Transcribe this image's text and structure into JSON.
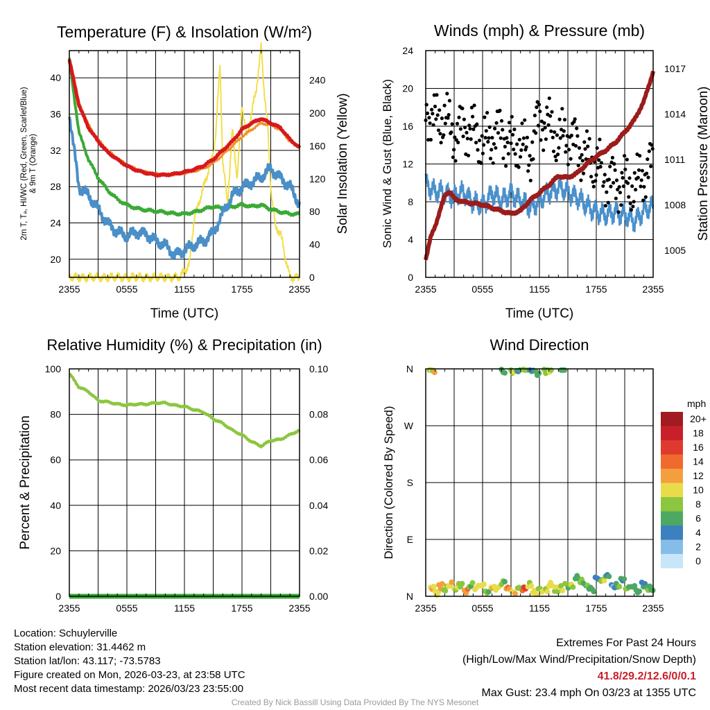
{
  "chart_data": [
    {
      "type": "line",
      "title": "Temperature (F) & Insolation (W/m²)",
      "xlabel": "Time (UTC)",
      "ylabel_lines": [
        "2m T, Tₔ, HI/WC (Red, Green, Scarlet/Blue)",
        "& 9m T (Orange)"
      ],
      "ylabel_right": "Solar Insolation (Yellow)",
      "xticks": [
        "2355",
        "0555",
        "1155",
        "1755",
        "2355"
      ],
      "ylim": [
        18,
        43
      ],
      "yticks": [
        20,
        24,
        28,
        32,
        36,
        40
      ],
      "ylim_right": [
        0,
        276
      ],
      "yticks_right": [
        0,
        40,
        80,
        120,
        160,
        200,
        240
      ],
      "series": [
        {
          "name": "2m Temperature",
          "color": "#d7191c",
          "x": [
            0,
            1,
            2,
            3,
            4,
            5,
            6,
            7,
            8,
            9,
            10,
            11,
            12,
            13,
            14,
            15,
            16,
            17,
            18,
            19,
            20,
            21,
            22,
            23,
            24
          ],
          "values": [
            42,
            37,
            34.5,
            33,
            31.8,
            31,
            30.3,
            29.8,
            29.5,
            29.3,
            29.3,
            29.4,
            29.6,
            29.9,
            30.3,
            31,
            32,
            33,
            34.3,
            35,
            35.5,
            35,
            34.5,
            33.2,
            32.3
          ]
        },
        {
          "name": "9m Temperature",
          "color": "#f28e2b",
          "x": [
            0,
            1,
            2,
            3,
            4,
            5,
            6,
            7,
            8,
            9,
            10,
            11,
            12,
            13,
            14,
            15,
            16,
            17,
            18,
            19,
            20,
            21,
            22,
            23,
            24
          ],
          "values": [
            42,
            37.3,
            34.8,
            33.2,
            32,
            31.1,
            30.4,
            29.9,
            29.6,
            29.4,
            29.3,
            29.4,
            29.5,
            29.7,
            30,
            30.6,
            31.5,
            32.5,
            33.5,
            34.3,
            35,
            34.8,
            34.3,
            33,
            32.3
          ]
        },
        {
          "name": "Dew Point",
          "color": "#3aaa35",
          "x": [
            0,
            1,
            2,
            3,
            4,
            5,
            6,
            7,
            8,
            9,
            10,
            11,
            12,
            13,
            14,
            15,
            16,
            17,
            18,
            19,
            20,
            21,
            22,
            23,
            24
          ],
          "values": [
            42,
            34,
            31,
            29,
            27.6,
            26.6,
            26,
            25.6,
            25.4,
            25.3,
            25.2,
            25,
            25,
            25.2,
            25.5,
            25.8,
            25.6,
            25.8,
            26,
            25.8,
            26,
            25.5,
            25.2,
            25,
            25
          ]
        },
        {
          "name": "Heat Index / Wind Chill",
          "color": "#4a8fc8",
          "x": [
            0,
            1,
            2,
            3,
            4,
            5,
            6,
            7,
            8,
            9,
            10,
            11,
            12,
            13,
            14,
            15,
            16,
            17,
            18,
            19,
            20,
            21,
            22,
            23,
            24
          ],
          "values": [
            36,
            28,
            27,
            25.5,
            24,
            23,
            22.5,
            23,
            22.8,
            22,
            21.5,
            20.5,
            21,
            21.5,
            22,
            23,
            25,
            27,
            28,
            28.5,
            29,
            30,
            29,
            28,
            26
          ]
        },
        {
          "name": "Solar Insolation",
          "color": "#f3df4a",
          "axis": "right",
          "x": [
            0,
            2,
            4,
            6,
            8,
            10,
            11.5,
            12.5,
            13,
            14,
            15,
            15.3,
            15.7,
            16,
            16.5,
            17,
            17.5,
            18,
            18.5,
            19,
            19.5,
            20,
            20.3,
            20.7,
            21,
            21.5,
            22,
            22.5,
            23,
            24
          ],
          "values": [
            0,
            0,
            0,
            0,
            0,
            0,
            0,
            15,
            70,
            110,
            150,
            180,
            260,
            140,
            90,
            180,
            120,
            210,
            170,
            200,
            230,
            280,
            230,
            180,
            110,
            60,
            55,
            25,
            0,
            0
          ]
        }
      ]
    },
    {
      "type": "scatter",
      "title": "Winds (mph) & Pressure (mb)",
      "xlabel": "Time (UTC)",
      "ylabel": "Sonic Wind & Gust (Blue, Black)",
      "ylabel_right": "Station Pressure (Maroon)",
      "xticks": [
        "2355",
        "0555",
        "1155",
        "1755",
        "2355"
      ],
      "ylim": [
        0,
        24
      ],
      "yticks": [
        0,
        4,
        8,
        12,
        16,
        20,
        24
      ],
      "ylim_right": [
        1003.2,
        1018.2
      ],
      "yticks_right": [
        1005,
        1008,
        1011,
        1014,
        1017
      ],
      "series": [
        {
          "name": "Sonic Wind",
          "color": "#4a90cc",
          "type": "line",
          "x": [
            0,
            1,
            2,
            3,
            4,
            5,
            6,
            7,
            8,
            9,
            10,
            11,
            12,
            13,
            14,
            15,
            16,
            17,
            18,
            19,
            20,
            21,
            22,
            23,
            24
          ],
          "values": [
            10,
            9,
            9,
            8.5,
            9,
            8,
            7.5,
            9,
            8,
            9,
            8,
            7.5,
            8,
            9,
            9.5,
            9,
            8.5,
            7.5,
            7,
            6.5,
            7,
            6.5,
            6,
            7,
            7.5
          ]
        },
        {
          "name": "Gust",
          "color": "#000000",
          "type": "scatter",
          "x": [
            0,
            1,
            2,
            3,
            4,
            5,
            6,
            7,
            8,
            9,
            10,
            11,
            12,
            13,
            14,
            15,
            16,
            17,
            18,
            19,
            20,
            21,
            22,
            23,
            24
          ],
          "values": [
            18,
            16.5,
            17,
            15,
            16,
            15.5,
            14,
            15,
            15.5,
            14,
            14,
            13,
            17,
            16,
            14.5,
            15,
            14,
            12.5,
            12,
            10.5,
            10,
            10,
            9.5,
            11,
            12
          ]
        },
        {
          "name": "Station Pressure",
          "color": "#9b1c1c",
          "type": "line",
          "axis": "right",
          "x": [
            0,
            0.5,
            1,
            1.5,
            2,
            2.5,
            3,
            4,
            5,
            6,
            7,
            8,
            9,
            10,
            11,
            12,
            13,
            14,
            15,
            16,
            17,
            18,
            19,
            20,
            21,
            22,
            23,
            24
          ],
          "values": [
            1004.4,
            1005.8,
            1006.6,
            1007.6,
            1008.6,
            1008.9,
            1008.4,
            1008.2,
            1008.1,
            1008,
            1007.8,
            1007.6,
            1007.4,
            1007.6,
            1008.3,
            1008.8,
            1009.3,
            1009.9,
            1009.8,
            1010.1,
            1010.7,
            1011.2,
            1011.6,
            1012.1,
            1012.8,
            1013.6,
            1014.8,
            1016.8
          ]
        }
      ]
    },
    {
      "type": "line",
      "title": "Relative Humidity (%) & Precipitation (in)",
      "ylabel": "Percent & Precipitation",
      "xticks": [
        "2355",
        "0555",
        "1155",
        "1755",
        "2355"
      ],
      "ylim": [
        0,
        100
      ],
      "yticks": [
        0,
        20,
        40,
        60,
        80,
        100
      ],
      "ylim_right": [
        0,
        0.1
      ],
      "yticks_right": [
        "0.00",
        "0.02",
        "0.04",
        "0.06",
        "0.08",
        "0.10"
      ],
      "series": [
        {
          "name": "Relative Humidity",
          "color": "#8cc63f",
          "x": [
            0,
            1,
            2,
            3,
            4,
            5,
            6,
            7,
            8,
            9,
            10,
            11,
            12,
            13,
            14,
            15,
            16,
            17,
            18,
            19,
            20,
            21,
            22,
            23,
            24
          ],
          "values": [
            98,
            92,
            90,
            86,
            85.5,
            84.5,
            84,
            84.5,
            84.5,
            85,
            85,
            84,
            83.5,
            82,
            81,
            78,
            76,
            73,
            71,
            68,
            66,
            68.5,
            69,
            71,
            73
          ]
        },
        {
          "name": "Precipitation",
          "color": "#3aaa35",
          "axis": "right",
          "x": [
            0,
            24
          ],
          "values": [
            0,
            0
          ]
        }
      ]
    },
    {
      "type": "scatter",
      "title": "Wind Direction",
      "ylabel": "Direction (Colored By Speed)",
      "xticks": [
        "2355",
        "0555",
        "1155",
        "1755",
        "2355"
      ],
      "yticks": [
        "N",
        "E",
        "S",
        "W",
        "N"
      ],
      "ylim": [
        0,
        360
      ],
      "colorbar_title": "mph",
      "colorbar_labels": [
        "20+",
        "18",
        "16",
        "14",
        "12",
        "10",
        "8",
        "6",
        "4",
        "2",
        "0"
      ],
      "colorbar_colors": [
        "#a11b22",
        "#c8202a",
        "#e03a2f",
        "#f06a2e",
        "#f59e3f",
        "#e8dc4b",
        "#8cc63f",
        "#4ca862",
        "#3d80c0",
        "#86bde8",
        "#c7e6fa"
      ],
      "x": [
        0.4,
        0.6,
        8,
        9,
        9.6,
        10.3,
        11,
        11.6,
        12.5,
        12.9,
        14.3,
        0.5,
        1,
        1.4,
        1.9,
        2.4,
        3,
        3.5,
        4.1,
        4.6,
        5.2,
        5.8,
        6.3,
        6.9,
        7.4,
        8,
        8.5,
        9.1,
        9.7,
        10.2,
        10.8,
        11.3,
        11.9,
        12.5,
        13,
        13.6,
        14.1,
        14.7,
        15.2,
        15.8,
        16.3,
        16.9,
        17.4,
        17.9,
        18.5,
        19,
        19.6,
        20.1,
        20.6,
        21.1,
        21.7,
        22.2,
        22.8,
        23.3,
        23.8
      ],
      "values": [
        358,
        357,
        359,
        358,
        357,
        359,
        358,
        356,
        359,
        357,
        358,
        14,
        8,
        18,
        10,
        16,
        12,
        20,
        9,
        15,
        11,
        17,
        8,
        14,
        10,
        19,
        12,
        7,
        13,
        9,
        15,
        6,
        12,
        10,
        16,
        8,
        14,
        20,
        18,
        28,
        22,
        17,
        14,
        30,
        24,
        32,
        18,
        20,
        28,
        12,
        15,
        10,
        22,
        14,
        10
      ],
      "speeds": [
        8,
        10,
        6,
        7,
        5,
        8,
        4,
        6,
        7,
        8,
        6,
        10,
        9,
        12,
        8,
        9,
        10,
        7,
        12,
        8,
        10,
        9,
        8,
        10,
        9,
        8,
        12,
        10,
        8,
        14,
        9,
        10,
        8,
        9,
        10,
        8,
        9,
        8,
        7,
        6,
        7,
        5,
        6,
        4,
        7,
        5,
        3,
        6,
        5,
        7,
        5,
        6,
        4,
        6,
        5
      ]
    }
  ],
  "footer": {
    "location": "Location: Schuylerville",
    "elevation": "Station elevation: 31.4462 m",
    "latlon": "Station lat/lon: 43.117; -73.5783",
    "created": "Figure created on Mon, 2026-03-23, at 23:58 UTC",
    "recent": "Most recent data timestamp: 2026/03/23 23:55:00",
    "extremes_title": "Extremes For Past 24 Hours",
    "extremes_subtitle": "(High/Low/Max Wind/Precipitation/Snow Depth)",
    "extremes_values": "41.8/29.2/12.6/0/0.1",
    "max_gust": "Max Gust: 23.4 mph On 03/23 at 1355 UTC",
    "credit": "Created By Nick Bassill Using Data Provided By The NYS Mesonet"
  }
}
